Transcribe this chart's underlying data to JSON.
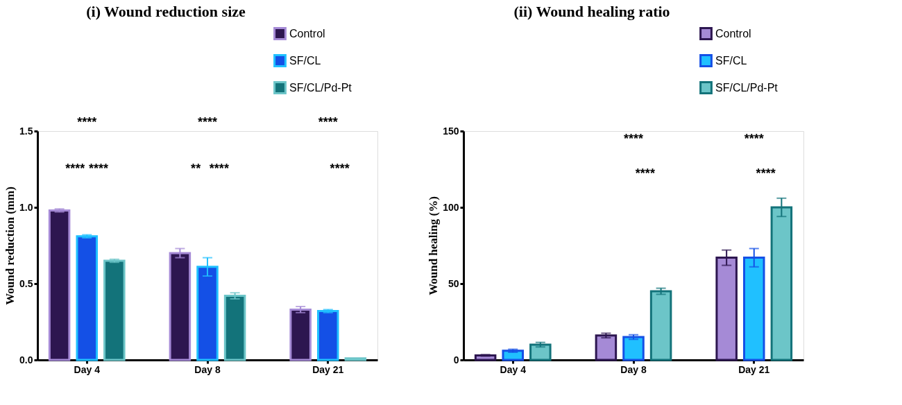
{
  "chart_data": [
    {
      "type": "bar",
      "title": "(i) Wound reduction size",
      "ylabel": "Wound reduction (mm)",
      "categories": [
        "Day 4",
        "Day 8",
        "Day 21"
      ],
      "legend": "top right",
      "series": [
        {
          "name": "Control",
          "color": "#2d1650",
          "values": [
            0.98,
            0.7,
            0.33
          ],
          "errors": [
            0.01,
            0.03,
            0.02
          ]
        },
        {
          "name": "SF/CL",
          "color": "#1450e6",
          "values": [
            0.81,
            0.61,
            0.32
          ],
          "errors": [
            0.01,
            0.06,
            0.01
          ]
        },
        {
          "name": "SF/CL/Pd-Pt",
          "color": "#13737a",
          "values": [
            0.65,
            0.42,
            0.01
          ],
          "errors": [
            0.01,
            0.02,
            null
          ]
        }
      ],
      "ylim": [
        0,
        1.5
      ],
      "yticks": [
        {
          "value": 0,
          "label": "0.0"
        },
        {
          "value": 0.5,
          "label": "0.5"
        },
        {
          "value": 1,
          "label": "1.0"
        },
        {
          "value": 1.5,
          "label": "1.5"
        }
      ],
      "grid": false,
      "annotations": [
        "****",
        "****",
        "****",
        "****",
        "**",
        "****",
        "****",
        "****"
      ]
    },
    {
      "type": "bar",
      "title": "(ii) Wound healing ratio",
      "ylabel": "Wound healing (%)",
      "categories": [
        "Day 4",
        "Day 8",
        "Day 21"
      ],
      "legend": "top right",
      "series": [
        {
          "name": "Control",
          "color": "#a58ad6",
          "values": [
            3,
            16,
            67
          ],
          "errors": [
            0.5,
            1.5,
            5
          ]
        },
        {
          "name": "SF/CL",
          "color": "#20c0ff",
          "values": [
            6,
            15,
            67
          ],
          "errors": [
            1,
            1.5,
            6
          ]
        },
        {
          "name": "SF/CL/Pd-Pt",
          "color": "#6cc5c8",
          "values": [
            10,
            45,
            100
          ],
          "errors": [
            1.5,
            2,
            6
          ]
        }
      ],
      "ylim": [
        0,
        150
      ],
      "yticks": [
        0,
        50,
        100,
        150
      ],
      "grid": false,
      "annotations": [
        "****",
        "****",
        "****",
        "****"
      ]
    }
  ]
}
